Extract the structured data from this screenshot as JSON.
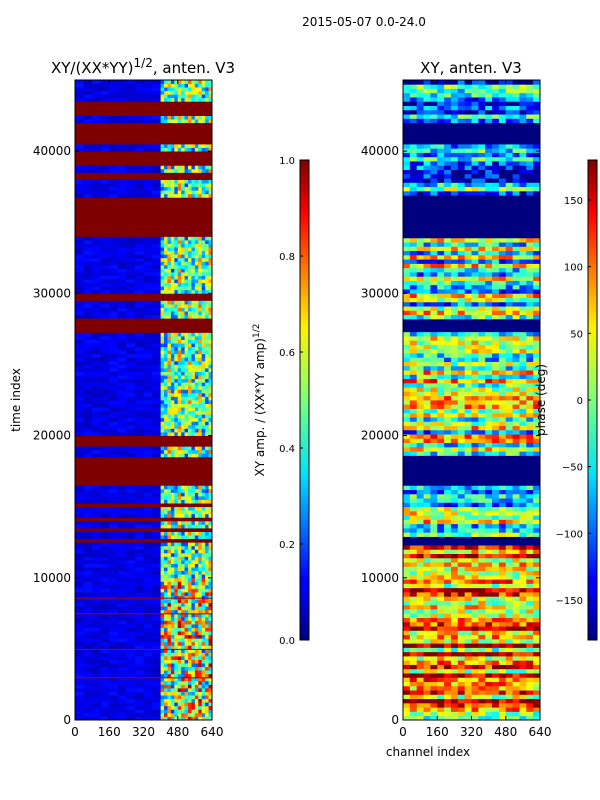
{
  "suptitle": "2015-05-07 0.0-24.0",
  "chart_data": [
    {
      "type": "heatmap",
      "title": "XY/(XX*YY)",
      "title_superscript": "1/2",
      "title_suffix": ", anten. V3",
      "xlabel": "",
      "ylabel": "time index",
      "xlim": [
        0,
        640
      ],
      "ylim": [
        0,
        45000
      ],
      "xticks": [
        0,
        160,
        320,
        480,
        640
      ],
      "yticks": [
        0,
        10000,
        20000,
        30000,
        40000
      ],
      "colorbar": {
        "label": "XY amp. / (XX*YY amp)",
        "label_superscript": "1/2",
        "range": [
          0.0,
          1.0
        ],
        "ticks": [
          0.0,
          0.2,
          0.4,
          0.6,
          0.8,
          1.0
        ],
        "tick_labels": [
          "0.0",
          "0.2",
          "0.4",
          "0.6",
          "0.8",
          "1.0"
        ]
      },
      "flagged_time_ranges": [
        [
          12300,
          12700
        ],
        [
          13200,
          13400
        ],
        [
          14000,
          14200
        ],
        [
          15000,
          15200
        ],
        [
          16500,
          18500
        ],
        [
          19200,
          19800
        ],
        [
          27200,
          28200
        ],
        [
          29500,
          30000
        ],
        [
          33800,
          36700
        ],
        [
          37800,
          38500
        ],
        [
          38800,
          40000
        ],
        [
          40500,
          42000
        ],
        [
          42300,
          43500
        ]
      ],
      "bright_channel_range": [
        400,
        640
      ]
    },
    {
      "type": "heatmap",
      "title": "XY, anten. V3",
      "xlabel": "channel index",
      "ylabel": "",
      "xlim": [
        0,
        640
      ],
      "ylim": [
        0,
        45000
      ],
      "xticks": [
        0,
        160,
        320,
        480,
        640
      ],
      "yticks": [
        0,
        10000,
        20000,
        30000,
        40000
      ],
      "colorbar": {
        "label": "phase (deg)",
        "range": [
          -180,
          180
        ],
        "ticks": [
          -150,
          -100,
          -50,
          0,
          50,
          100,
          150
        ],
        "tick_labels": [
          "−150",
          "−100",
          "−50",
          "0",
          "50",
          "100",
          "150"
        ]
      },
      "flagged_time_ranges": [
        [
          12300,
          12700
        ],
        [
          16500,
          18500
        ],
        [
          27200,
          28200
        ],
        [
          33800,
          36700
        ],
        [
          40500,
          42000
        ]
      ]
    }
  ]
}
